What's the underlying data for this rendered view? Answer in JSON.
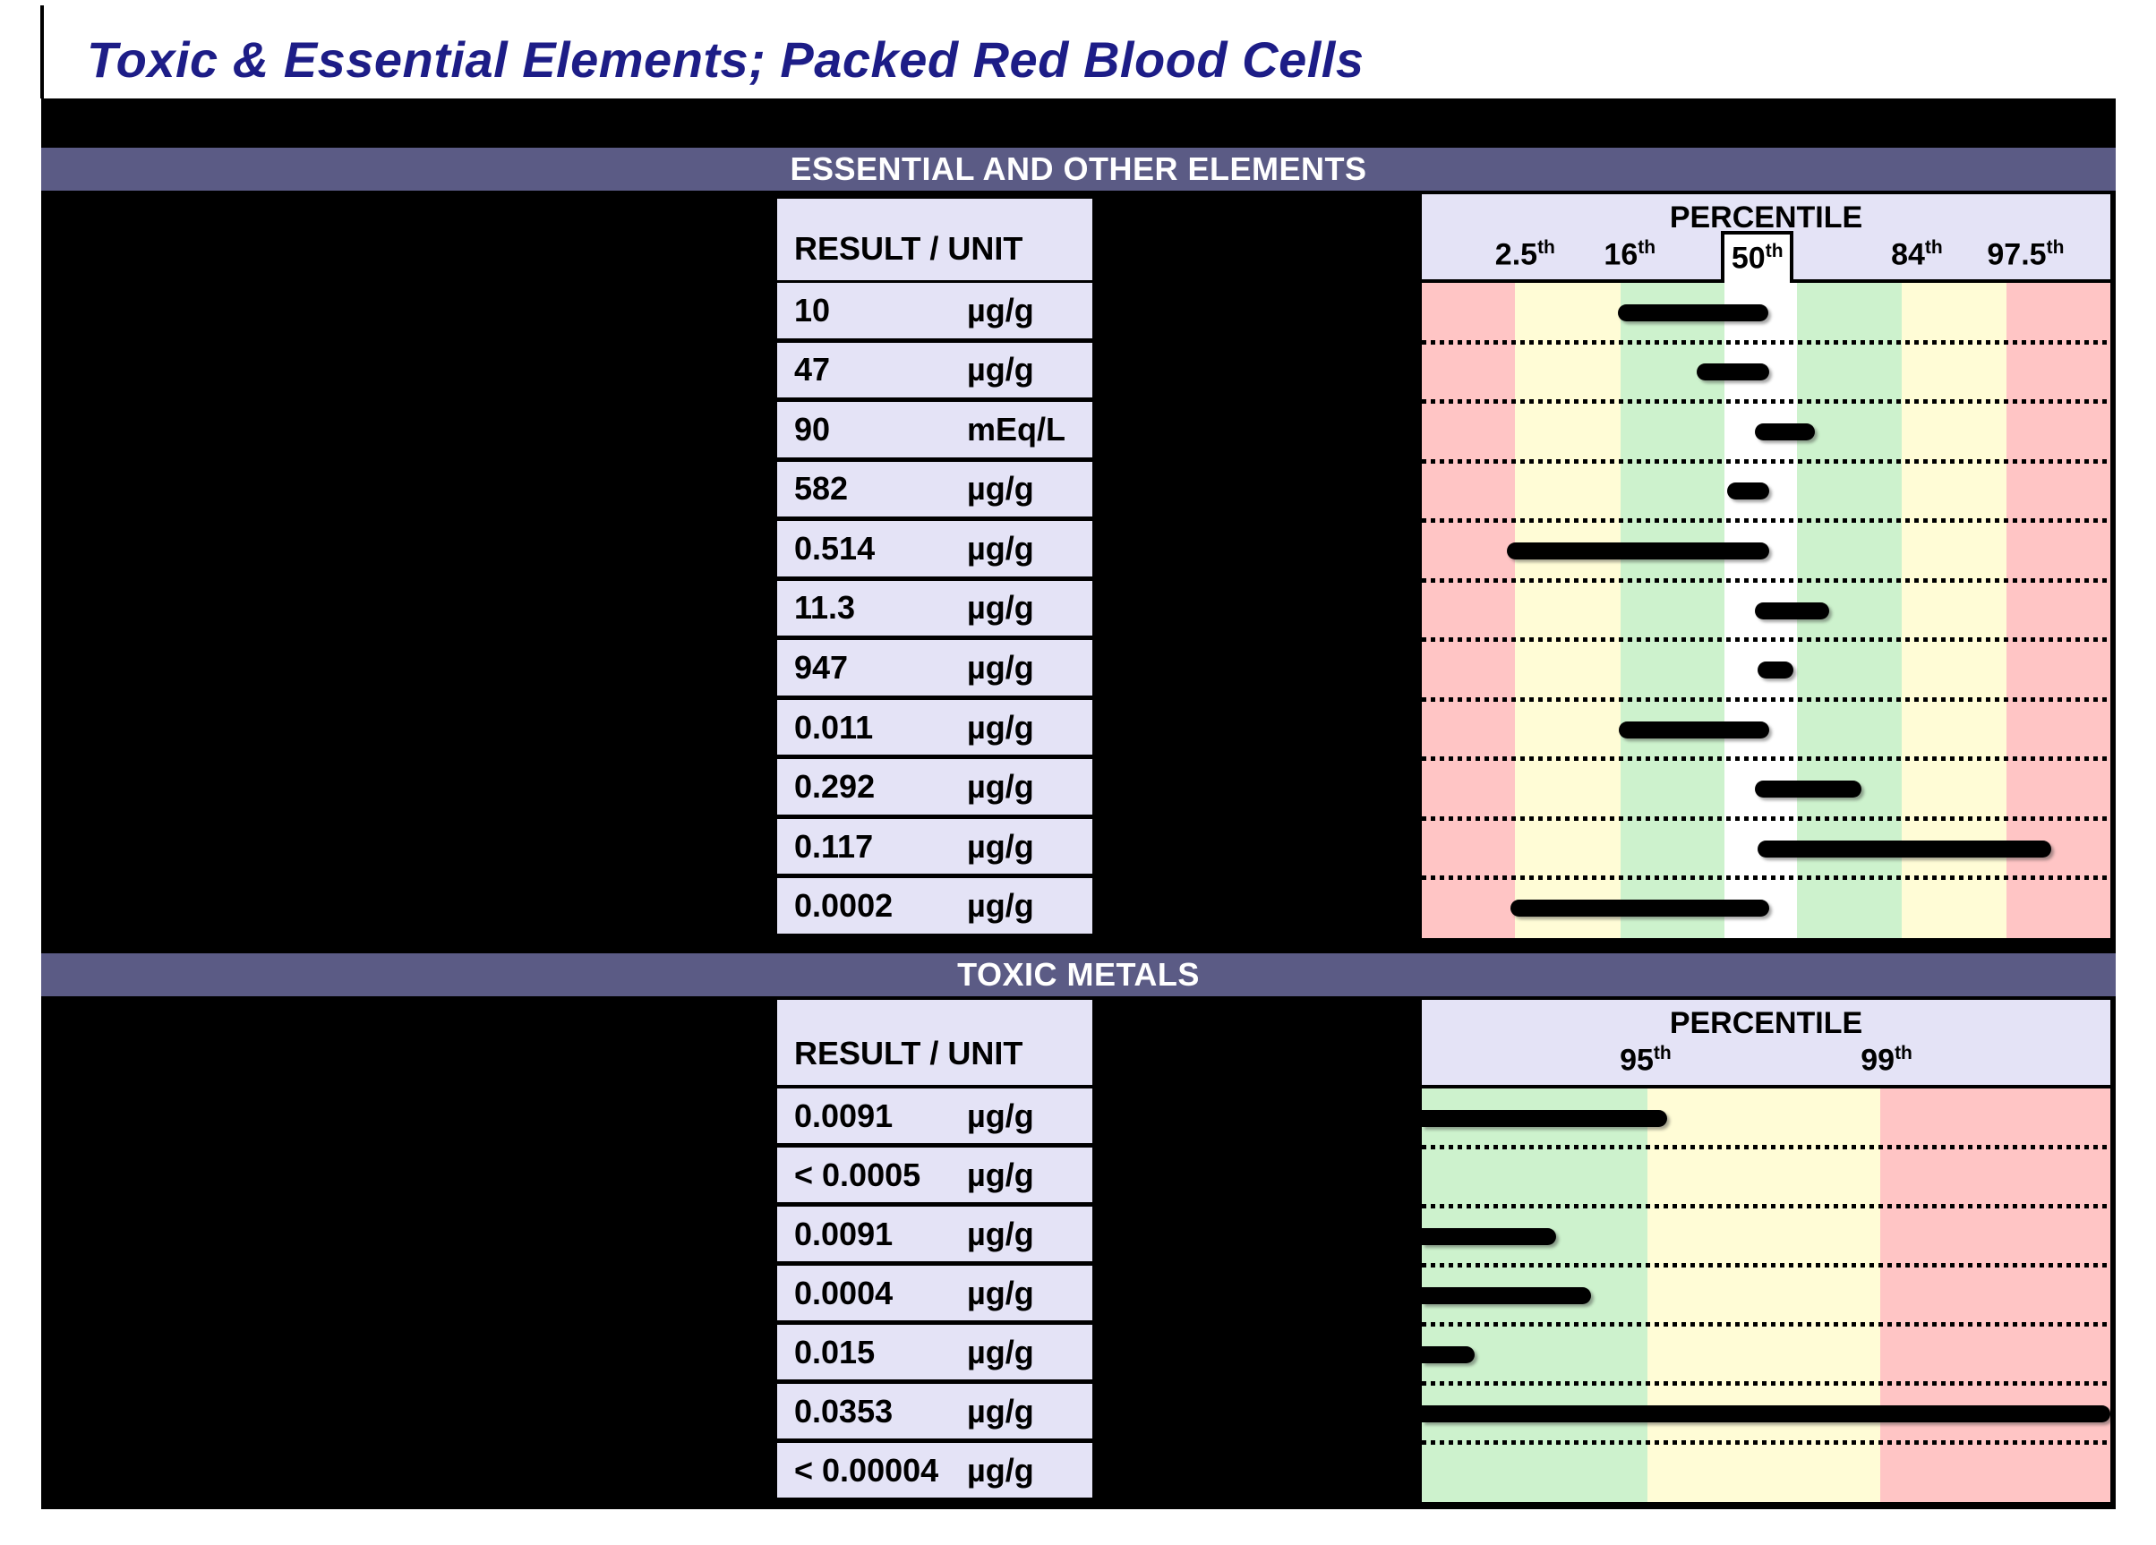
{
  "title": "Toxic & Essential Elements; Packed Red Blood Cells",
  "palette": {
    "navy": "#1d1d87",
    "slate": "#5b5b85",
    "lavender": "#e4e3f6",
    "band_red": "#ffc5c5",
    "band_yellow": "#fffcd6",
    "band_green": "#cdf2cd",
    "band_white": "#ffffff",
    "bar": "#000000"
  },
  "sections": [
    {
      "header": "ESSENTIAL AND OTHER ELEMENTS",
      "result_header": "RESULT / UNIT",
      "percentile_title": "PERCENTILE",
      "ticks": [
        {
          "label": "2.5",
          "sup": "th",
          "pos": 15.0,
          "boxed": false
        },
        {
          "label": "16",
          "sup": "th",
          "pos": 30.2,
          "boxed": false
        },
        {
          "label": "50",
          "sup": "th",
          "pos": 49.25,
          "boxed": true
        },
        {
          "label": "84",
          "sup": "th",
          "pos": 71.9,
          "boxed": false
        },
        {
          "label": "97.5",
          "sup": "th",
          "pos": 87.7,
          "boxed": false
        }
      ],
      "bands": [
        {
          "color": "band_red",
          "from": 0,
          "to": 13.5
        },
        {
          "color": "band_yellow",
          "from": 13.5,
          "to": 28.9
        },
        {
          "color": "band_green",
          "from": 28.9,
          "to": 44.0
        },
        {
          "color": "band_white",
          "from": 44.0,
          "to": 54.5
        },
        {
          "color": "band_green",
          "from": 54.5,
          "to": 69.7
        },
        {
          "color": "band_yellow",
          "from": 69.7,
          "to": 84.9
        },
        {
          "color": "band_red",
          "from": 84.9,
          "to": 100
        }
      ],
      "rows": [
        {
          "result": "10",
          "unit": "µg/g",
          "bar": [
            28.5,
            50.3
          ]
        },
        {
          "result": "47",
          "unit": "µg/g",
          "bar": [
            39.9,
            50.5
          ]
        },
        {
          "result": "90",
          "unit": "mEq/L",
          "bar": [
            48.4,
            57.1
          ]
        },
        {
          "result": "582",
          "unit": "µg/g",
          "bar": [
            44.3,
            50.5
          ]
        },
        {
          "result": "0.514",
          "unit": "µg/g",
          "bar": [
            12.4,
            50.5
          ]
        },
        {
          "result": "11.3",
          "unit": "µg/g",
          "bar": [
            48.4,
            59.2
          ]
        },
        {
          "result": "947",
          "unit": "µg/g",
          "bar": [
            48.8,
            54.0
          ]
        },
        {
          "result": "0.011",
          "unit": "µg/g",
          "bar": [
            28.6,
            50.5
          ]
        },
        {
          "result": "0.292",
          "unit": "µg/g",
          "bar": [
            48.4,
            63.8
          ]
        },
        {
          "result": "0.117",
          "unit": "µg/g",
          "bar": [
            48.8,
            91.4
          ]
        },
        {
          "result": "0.0002",
          "unit": "µg/g",
          "bar": [
            12.9,
            50.5
          ]
        }
      ]
    },
    {
      "header": "TOXIC METALS",
      "result_header": "RESULT / UNIT",
      "percentile_title": "PERCENTILE",
      "ticks": [
        {
          "label": "95",
          "sup": "th",
          "pos": 32.5,
          "boxed": false
        },
        {
          "label": "99",
          "sup": "th",
          "pos": 67.5,
          "boxed": false
        }
      ],
      "bands": [
        {
          "color": "band_green",
          "from": 0,
          "to": 32.8
        },
        {
          "color": "band_yellow",
          "from": 32.8,
          "to": 66.6
        },
        {
          "color": "band_red",
          "from": 66.6,
          "to": 100
        }
      ],
      "rows": [
        {
          "result": "0.0091",
          "unit": "µg/g",
          "bar": [
            0,
            35.6
          ]
        },
        {
          "result": "< 0.0005",
          "unit": "µg/g",
          "bar": null
        },
        {
          "result": "0.0091",
          "unit": "µg/g",
          "bar": [
            0,
            19.5
          ]
        },
        {
          "result": "0.0004",
          "unit": "µg/g",
          "bar": [
            0,
            24.6
          ]
        },
        {
          "result": "0.015",
          "unit": "µg/g",
          "bar": [
            0,
            7.7
          ]
        },
        {
          "result": "0.0353",
          "unit": "µg/g",
          "bar": [
            0,
            100
          ]
        },
        {
          "result": "< 0.00004",
          "unit": "µg/g",
          "bar": null
        }
      ]
    }
  ]
}
